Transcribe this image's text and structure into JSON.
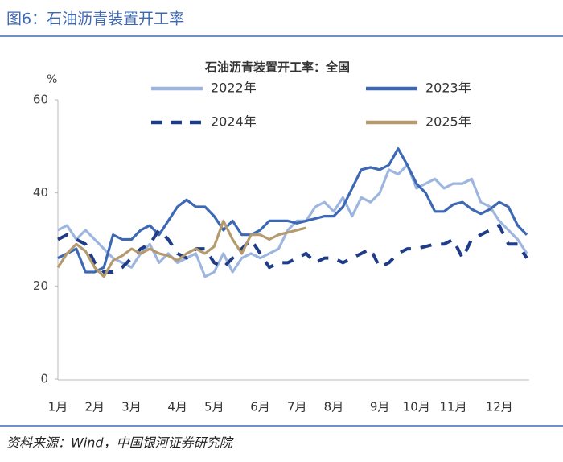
{
  "header": {
    "title": "图6：石油沥青装置开工率"
  },
  "chart_data": {
    "type": "line",
    "title": "石油沥青装置开工率：全国",
    "y_label": "%",
    "categories": [
      "1月",
      null,
      null,
      null,
      "2月",
      null,
      null,
      null,
      "3月",
      null,
      null,
      null,
      null,
      "4月",
      null,
      null,
      null,
      "5月",
      null,
      null,
      null,
      null,
      "6月",
      null,
      null,
      null,
      "7月",
      null,
      null,
      null,
      "8月",
      null,
      null,
      null,
      null,
      "9月",
      null,
      null,
      null,
      "10月",
      null,
      null,
      null,
      "11月",
      null,
      null,
      null,
      null,
      "12月",
      null,
      null,
      null
    ],
    "series": [
      {
        "name": "2022年",
        "color": "#9db6e0",
        "dashed": false,
        "values": [
          32,
          33,
          30,
          32,
          30,
          28,
          26,
          25,
          24,
          27,
          29,
          25,
          27,
          25,
          26,
          27,
          22,
          23,
          27,
          23,
          26,
          27,
          26,
          27,
          28,
          32,
          34,
          34,
          37,
          38,
          36,
          39,
          35,
          39,
          38,
          40,
          45,
          44,
          46,
          41,
          42,
          43,
          41,
          42,
          42,
          43,
          38,
          37,
          34,
          32,
          30,
          27
        ]
      },
      {
        "name": "2023年",
        "color": "#3d68b3",
        "dashed": false,
        "values": [
          26,
          27,
          28,
          23,
          23,
          24,
          31,
          30,
          30,
          32,
          33,
          31,
          34,
          37,
          38.5,
          37,
          37,
          35,
          32,
          34,
          31,
          31,
          32,
          34,
          34,
          34,
          33.5,
          34,
          34.5,
          35,
          35,
          37,
          41,
          45,
          45.5,
          45,
          46,
          49.5,
          46,
          42,
          40,
          36,
          36,
          37.5,
          38,
          36.5,
          35.5,
          36.5,
          38,
          37,
          33,
          31
        ]
      },
      {
        "name": "2024年",
        "color": "#1f3c88",
        "dashed": true,
        "values": [
          30,
          31,
          30,
          29,
          25,
          23,
          23,
          24,
          26,
          28,
          29,
          32,
          30,
          27,
          26,
          28,
          28,
          25,
          24,
          26,
          28,
          30,
          27,
          24,
          25,
          25,
          26,
          27,
          25,
          26,
          26,
          25,
          26,
          27,
          28,
          24,
          25,
          27,
          28,
          28,
          28.5,
          29,
          29,
          30,
          26,
          30,
          31,
          32,
          33,
          29,
          29,
          26
        ]
      },
      {
        "name": "2025年",
        "color": "#b59a6e",
        "dashed": false,
        "values": [
          24,
          27,
          29,
          27.5,
          24,
          22,
          25.5,
          26.5,
          28,
          27,
          28,
          27,
          26.5,
          25.5,
          27,
          28,
          27,
          28.5,
          34,
          30,
          27,
          31,
          31,
          30,
          31,
          31.5,
          32,
          32.5,
          null,
          null,
          null,
          null,
          null,
          null,
          null,
          null,
          null,
          null,
          null,
          null,
          null,
          null,
          null,
          null,
          null,
          null,
          null,
          null,
          null,
          null,
          null,
          null
        ]
      }
    ],
    "ylim": [
      0,
      60
    ],
    "yticks": [
      0,
      20,
      40,
      60
    ],
    "grid": false,
    "legend_position": "top"
  },
  "footer": {
    "source": "资料来源：Wind，中国银河证券研究院"
  }
}
